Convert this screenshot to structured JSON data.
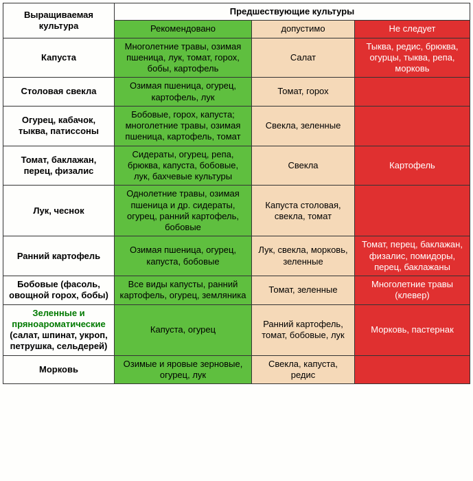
{
  "header": {
    "crop": "Выращиваемая культура",
    "preceding": "Предшествующие культуры",
    "recommended": "Рекомендовано",
    "acceptable": "допустимо",
    "not_recommended": "Не следует"
  },
  "rows": [
    {
      "crop": "Капуста",
      "rec": "Многолетние травы, озимая пшеница, лук, томат, горох, бобы, картофель",
      "ok": "Салат",
      "bad": "Тыква, редис, брюква, огурцы, тыква, репа, морковь"
    },
    {
      "crop": "Столовая свекла",
      "rec": "Озимая пшеница, огурец, картофель, лук",
      "ok": "Томат, горох",
      "bad": ""
    },
    {
      "crop": "Огурец, кабачок, тыква, патиссоны",
      "rec": "Бобовые, горох, капуста; многолетние травы, озимая пшеница, картофель, томат",
      "ok": "Свекла, зеленные",
      "bad": ""
    },
    {
      "crop": "Томат, баклажан, перец, физалис",
      "rec": "Сидераты, огурец, репа, брюква, капуста, бобовые, лук, бахчевые культуры",
      "ok": "Свекла",
      "bad": "Картофель"
    },
    {
      "crop": "Лук, чеснок",
      "rec": "Однолетние травы, озимая пшеница и др. сидераты, огурец, ранний картофель, бобовые",
      "ok": "Капуста столовая, свекла, томат",
      "bad": ""
    },
    {
      "crop": "Ранний картофель",
      "rec": "Озимая пшеница, огурец, капуста, бобовые",
      "ok": "Лук, свекла, морковь, зеленные",
      "bad": "Томат, перец, баклажан, физалис, помидоры, перец, баклажаны"
    },
    {
      "crop": "Бобовые (фасоль, овощной горох, бобы)",
      "rec": "Все виды капусты, ранний картофель, огурец, земляника",
      "ok": "Томат, зеленные",
      "bad": "Многолетние травы (клевер)"
    },
    {
      "crop_green": "Зеленные и пряноароматические",
      "crop_sub": "(салат, шпинат, укроп, петрушка, сельдерей)",
      "rec": "Капуста, огурец",
      "ok": "Ранний картофель, томат, бобовые, лук",
      "bad": "Морковь, пастернак"
    },
    {
      "crop": "Морковь",
      "rec": "Озимые и яровые зерновые, огурец, лук",
      "ok": "Свекла, капуста, редис",
      "bad": ""
    }
  ],
  "colors": {
    "recommended_bg": "#5fbf3f",
    "acceptable_bg": "#f5d9b8",
    "bad_bg": "#e03030",
    "bad_fg": "#ffffff",
    "page_bg": "#fefefc"
  }
}
